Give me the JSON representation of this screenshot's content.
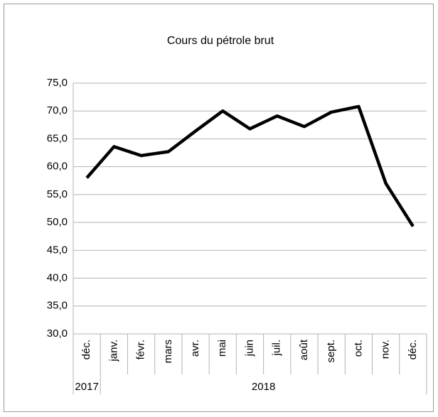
{
  "chart_data": {
    "type": "line",
    "title": "Cours du pétrole brut",
    "categories": [
      "déc.",
      "janv.",
      "févr.",
      "mars",
      "avr.",
      "mai",
      "juin",
      "juil.",
      "août",
      "sept.",
      "oct.",
      "nov.",
      "déc."
    ],
    "x_groups": [
      "2017",
      "2018",
      null,
      null,
      null,
      null,
      null,
      null,
      null,
      null,
      null,
      null,
      null
    ],
    "values": [
      58.0,
      63.6,
      62.0,
      62.7,
      66.4,
      70.0,
      66.8,
      69.1,
      67.2,
      69.8,
      70.8,
      57.0,
      49.3
    ],
    "color": "#000000",
    "ylim": [
      30,
      75
    ],
    "yticks": [
      {
        "value": 30,
        "label": "30,0"
      },
      {
        "value": 35,
        "label": "35,0"
      },
      {
        "value": 40,
        "label": "40,0"
      },
      {
        "value": 45,
        "label": "45,0"
      },
      {
        "value": 50,
        "label": "50,0"
      },
      {
        "value": 55,
        "label": "55,0"
      },
      {
        "value": 60,
        "label": "60,0"
      },
      {
        "value": 65,
        "label": "65,0"
      },
      {
        "value": 70,
        "label": "70,0"
      },
      {
        "value": 75,
        "label": "75,0"
      }
    ],
    "grid": true
  }
}
